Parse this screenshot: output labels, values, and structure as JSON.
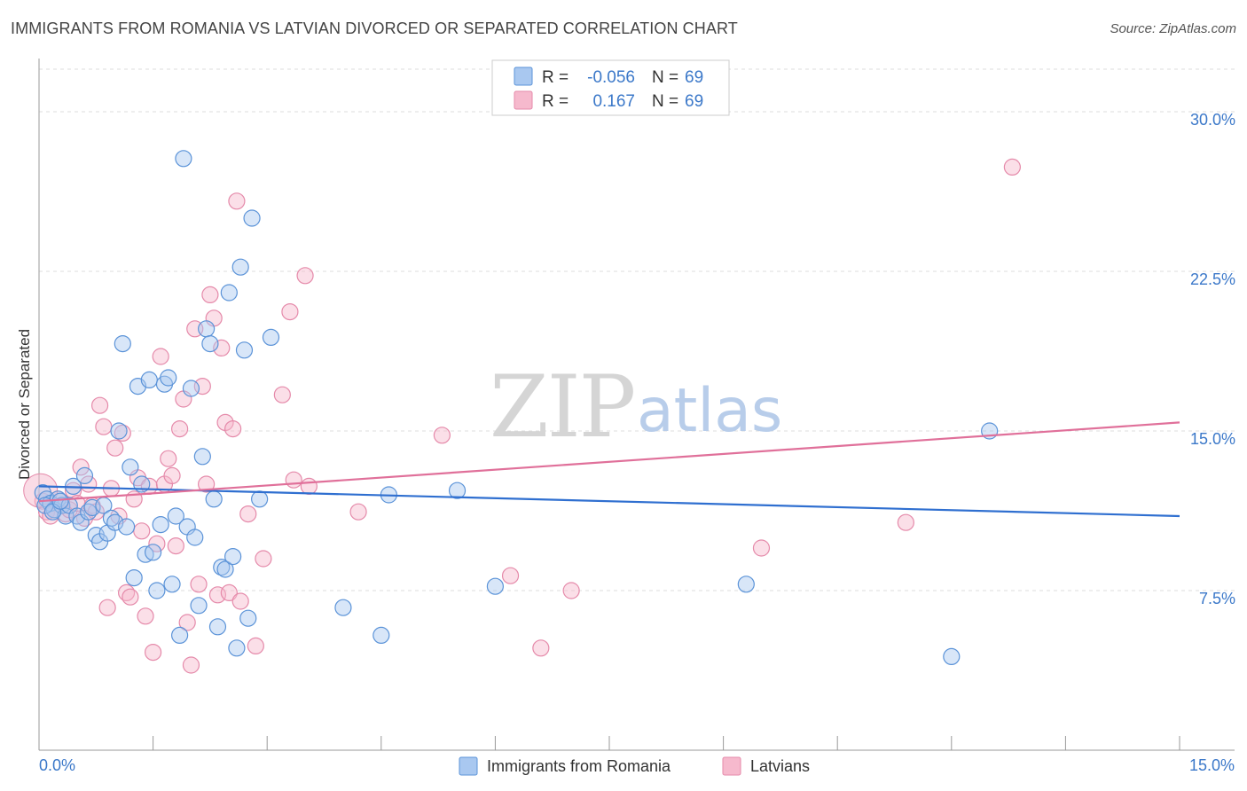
{
  "title": "IMMIGRANTS FROM ROMANIA VS LATVIAN DIVORCED OR SEPARATED CORRELATION CHART",
  "source": "Source: ZipAtlas.com",
  "watermark": {
    "zip": "ZIP",
    "atlas": "atlas"
  },
  "colors": {
    "blue_fill": "#a9c8f0",
    "blue_stroke": "#5b93d8",
    "blue_line": "#2f6fd0",
    "pink_fill": "#f6b9cd",
    "pink_stroke": "#e58aaa",
    "pink_line": "#e0709a",
    "tick_text": "#3b78c9",
    "grid": "#dddddd"
  },
  "legend": {
    "rows": [
      {
        "r_label": "R =",
        "r_value": "-0.056",
        "n_label": "N =",
        "n_value": "69",
        "color": "blue"
      },
      {
        "r_label": "R =",
        "r_value": "0.167",
        "n_label": "N =",
        "n_value": "69",
        "color": "pink"
      }
    ]
  },
  "chart_data": {
    "type": "scatter",
    "xlabel": "",
    "ylabel": "Divorced or Separated",
    "xlim": [
      0,
      15
    ],
    "ylim": [
      0,
      32
    ],
    "x_tick_labels": [
      "0.0%",
      "15.0%"
    ],
    "y_ticks": [
      7.5,
      15,
      22.5,
      30
    ],
    "y_tick_labels": [
      "7.5%",
      "15.0%",
      "22.5%",
      "30.0%"
    ],
    "grid": "horizontal dashed",
    "legend_position": "top-center",
    "series": [
      {
        "name": "Immigrants from Romania",
        "color": "blue",
        "trend": [
          [
            0,
            12.4
          ],
          [
            15,
            11.0
          ]
        ],
        "points": [
          [
            0.05,
            12.1
          ],
          [
            0.1,
            11.8
          ],
          [
            0.15,
            11.6
          ],
          [
            0.2,
            11.3
          ],
          [
            0.25,
            11.8
          ],
          [
            0.3,
            11.5
          ],
          [
            0.35,
            11.0
          ],
          [
            0.4,
            11.5
          ],
          [
            0.45,
            12.4
          ],
          [
            0.5,
            11.0
          ],
          [
            0.55,
            10.7
          ],
          [
            0.6,
            12.9
          ],
          [
            0.65,
            11.2
          ],
          [
            0.7,
            11.4
          ],
          [
            0.75,
            10.1
          ],
          [
            0.8,
            9.8
          ],
          [
            0.85,
            11.5
          ],
          [
            0.9,
            10.2
          ],
          [
            0.95,
            10.9
          ],
          [
            1.0,
            10.7
          ],
          [
            1.05,
            15.0
          ],
          [
            1.1,
            19.1
          ],
          [
            1.15,
            10.5
          ],
          [
            1.2,
            13.3
          ],
          [
            1.25,
            8.1
          ],
          [
            1.3,
            17.1
          ],
          [
            1.35,
            12.5
          ],
          [
            1.4,
            9.2
          ],
          [
            1.45,
            17.4
          ],
          [
            1.5,
            9.3
          ],
          [
            1.55,
            7.5
          ],
          [
            1.6,
            10.6
          ],
          [
            1.65,
            17.2
          ],
          [
            1.7,
            17.5
          ],
          [
            1.75,
            7.8
          ],
          [
            1.8,
            11.0
          ],
          [
            1.85,
            5.4
          ],
          [
            1.9,
            27.8
          ],
          [
            1.95,
            10.5
          ],
          [
            2.0,
            17.0
          ],
          [
            2.05,
            10.0
          ],
          [
            2.1,
            6.8
          ],
          [
            2.15,
            13.8
          ],
          [
            2.2,
            19.8
          ],
          [
            2.25,
            19.1
          ],
          [
            2.3,
            11.8
          ],
          [
            2.35,
            5.8
          ],
          [
            2.4,
            8.6
          ],
          [
            2.45,
            8.5
          ],
          [
            2.5,
            21.5
          ],
          [
            2.55,
            9.1
          ],
          [
            2.6,
            4.8
          ],
          [
            2.65,
            22.7
          ],
          [
            2.7,
            18.8
          ],
          [
            2.75,
            6.2
          ],
          [
            2.8,
            25.0
          ],
          [
            2.9,
            11.8
          ],
          [
            3.05,
            19.4
          ],
          [
            4.0,
            6.7
          ],
          [
            4.5,
            5.4
          ],
          [
            4.6,
            12.0
          ],
          [
            5.5,
            12.2
          ],
          [
            6.0,
            7.7
          ],
          [
            9.3,
            7.8
          ],
          [
            12.0,
            4.4
          ],
          [
            12.5,
            15.0
          ],
          [
            0.08,
            11.5
          ],
          [
            0.18,
            11.2
          ],
          [
            0.28,
            11.7
          ]
        ]
      },
      {
        "name": "Latvians",
        "color": "pink",
        "trend": [
          [
            0,
            11.7
          ],
          [
            15,
            15.4
          ]
        ],
        "points": [
          [
            0.05,
            11.7
          ],
          [
            0.1,
            11.2
          ],
          [
            0.15,
            11.0
          ],
          [
            0.2,
            11.3
          ],
          [
            0.25,
            11.8
          ],
          [
            0.3,
            11.5
          ],
          [
            0.35,
            11.1
          ],
          [
            0.4,
            11.3
          ],
          [
            0.45,
            12.2
          ],
          [
            0.5,
            11.6
          ],
          [
            0.55,
            13.3
          ],
          [
            0.6,
            10.9
          ],
          [
            0.65,
            12.5
          ],
          [
            0.7,
            11.5
          ],
          [
            0.75,
            11.2
          ],
          [
            0.8,
            16.2
          ],
          [
            0.85,
            15.2
          ],
          [
            0.9,
            6.7
          ],
          [
            0.95,
            12.3
          ],
          [
            1.0,
            14.2
          ],
          [
            1.05,
            11.0
          ],
          [
            1.1,
            14.9
          ],
          [
            1.15,
            7.4
          ],
          [
            1.2,
            7.2
          ],
          [
            1.25,
            11.8
          ],
          [
            1.3,
            12.8
          ],
          [
            1.35,
            10.3
          ],
          [
            1.4,
            6.3
          ],
          [
            1.45,
            12.4
          ],
          [
            1.5,
            4.6
          ],
          [
            1.55,
            9.7
          ],
          [
            1.6,
            18.5
          ],
          [
            1.65,
            12.5
          ],
          [
            1.7,
            13.7
          ],
          [
            1.75,
            12.9
          ],
          [
            1.8,
            9.6
          ],
          [
            1.85,
            15.1
          ],
          [
            1.9,
            16.5
          ],
          [
            1.95,
            6.0
          ],
          [
            2.0,
            4.0
          ],
          [
            2.05,
            19.8
          ],
          [
            2.1,
            7.8
          ],
          [
            2.15,
            17.1
          ],
          [
            2.2,
            12.5
          ],
          [
            2.25,
            21.4
          ],
          [
            2.3,
            20.3
          ],
          [
            2.35,
            7.3
          ],
          [
            2.4,
            18.9
          ],
          [
            2.45,
            15.4
          ],
          [
            2.5,
            7.4
          ],
          [
            2.55,
            15.1
          ],
          [
            2.6,
            25.8
          ],
          [
            2.65,
            7.0
          ],
          [
            2.75,
            11.1
          ],
          [
            2.85,
            4.9
          ],
          [
            2.95,
            9.0
          ],
          [
            3.2,
            16.7
          ],
          [
            3.3,
            20.6
          ],
          [
            3.35,
            12.7
          ],
          [
            3.5,
            22.3
          ],
          [
            3.55,
            12.4
          ],
          [
            4.2,
            11.2
          ],
          [
            5.3,
            14.8
          ],
          [
            6.2,
            8.2
          ],
          [
            6.6,
            4.8
          ],
          [
            7.0,
            7.5
          ],
          [
            9.5,
            9.5
          ],
          [
            11.4,
            10.7
          ],
          [
            12.8,
            27.4
          ]
        ]
      }
    ]
  },
  "bottom_legend": [
    {
      "label": "Immigrants from Romania",
      "color": "blue"
    },
    {
      "label": "Latvians",
      "color": "pink"
    }
  ]
}
